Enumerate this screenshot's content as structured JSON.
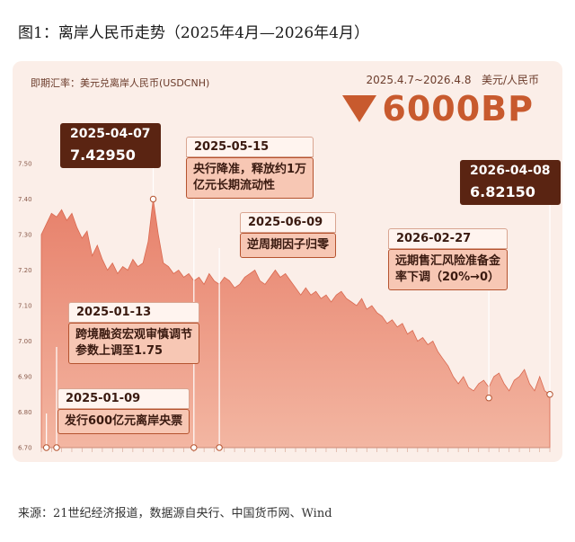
{
  "figure_title": "图1：离岸人民币走势（2025年4月—2026年4月）",
  "source": "来源：21世纪经济报道，数据源自央行、中国货币网、Wind",
  "colors": {
    "accent": "#c85a2e",
    "fill": "#e88c72",
    "dark": "#5a2412",
    "card_bg": "#fbeee8"
  },
  "chart_data": {
    "type": "area",
    "subtitle": "即期汇率：美元兑离岸人民币(USDCNH)",
    "period": "2025.4.7~2026.4.8",
    "unit": "美元/人民币",
    "change_label": "6000BP",
    "change_direction": "down",
    "yticks": [
      "7.50",
      "7.40",
      "7.30",
      "7.20",
      "7.10",
      "7.00",
      "6.90",
      "6.80",
      "6.70"
    ],
    "ylim": [
      6.7,
      7.5
    ],
    "xlim": [
      0,
      100
    ],
    "series": [
      {
        "values": [
          7.3,
          7.33,
          7.36,
          7.35,
          7.37,
          7.34,
          7.36,
          7.32,
          7.29,
          7.31,
          7.24,
          7.27,
          7.23,
          7.2,
          7.22,
          7.19,
          7.21,
          7.2,
          7.23,
          7.21,
          7.22,
          7.28,
          7.4,
          7.3,
          7.22,
          7.21,
          7.19,
          7.2,
          7.18,
          7.19,
          7.17,
          7.18,
          7.16,
          7.19,
          7.17,
          7.16,
          7.18,
          7.17,
          7.15,
          7.16,
          7.18,
          7.19,
          7.2,
          7.17,
          7.16,
          7.18,
          7.2,
          7.18,
          7.19,
          7.17,
          7.15,
          7.13,
          7.15,
          7.13,
          7.14,
          7.12,
          7.13,
          7.11,
          7.13,
          7.14,
          7.12,
          7.11,
          7.1,
          7.12,
          7.09,
          7.1,
          7.08,
          7.07,
          7.05,
          7.06,
          7.04,
          7.05,
          7.02,
          7.03,
          7.0,
          7.01,
          6.99,
          7.0,
          6.97,
          6.95,
          6.93,
          6.9,
          6.88,
          6.9,
          6.87,
          6.86,
          6.88,
          6.89,
          6.87,
          6.9,
          6.91,
          6.88,
          6.86,
          6.89,
          6.9,
          6.92,
          6.88,
          6.86,
          6.9,
          6.86,
          6.85
        ]
      }
    ],
    "annotations": [
      {
        "date": "2025-04-07",
        "value": "7.42950",
        "x": 22,
        "y": 7.4
      },
      {
        "date": "2025-05-15",
        "text_lines": [
          "央行降准，释放约1万",
          "亿元长期流动性"
        ],
        "x": 30,
        "y": 6.7
      },
      {
        "date": "2025-06-09",
        "text_lines": [
          "逆周期因子归零"
        ],
        "x": 35,
        "y": 6.7
      },
      {
        "date": "2026-02-27",
        "text_lines": [
          "远期售汇风险准备金",
          "率下调（20%→0）"
        ],
        "x": 88,
        "y": 6.84
      },
      {
        "date": "2026-04-08",
        "value": "6.82150",
        "x": 100,
        "y": 6.85
      },
      {
        "date": "2025-01-13",
        "text_lines": [
          "跨境融资宏观审慎调节",
          "参数上调至1.75"
        ],
        "x": 3,
        "y": 6.7
      },
      {
        "date": "2025-01-09",
        "text_lines": [
          "发行600亿元离岸央票"
        ],
        "x": 1,
        "y": 6.7
      }
    ]
  }
}
